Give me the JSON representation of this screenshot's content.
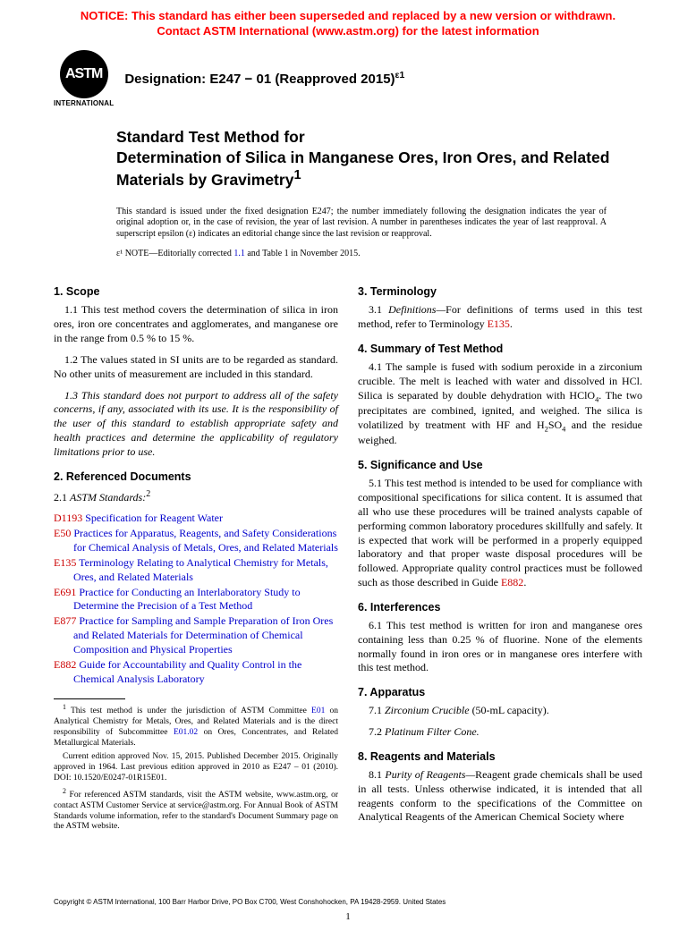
{
  "notice": {
    "line1": "NOTICE: This standard has either been superseded and replaced by a new version or withdrawn.",
    "line2": "Contact ASTM International (www.astm.org) for the latest information"
  },
  "logo": {
    "abbrev": "ASTM",
    "subtext": "INTERNATIONAL"
  },
  "designation": {
    "label": "Designation: E247 − 01 (Reapproved 2015)",
    "epsilon": "ε1"
  },
  "title": {
    "line1": "Standard Test Method for",
    "line2": "Determination of Silica in Manganese Ores, Iron Ores, and Related Materials by Gravimetry",
    "sup": "1"
  },
  "issuance": "This standard is issued under the fixed designation E247; the number immediately following the designation indicates the year of original adoption or, in the case of revision, the year of last revision. A number in parentheses indicates the year of last reapproval. A superscript epsilon (ε) indicates an editorial change since the last revision or reapproval.",
  "epsilon_note": {
    "prefix": "ε¹ NOTE—Editorially corrected ",
    "link": "1.1",
    "suffix": " and Table 1 in November 2015."
  },
  "sections": {
    "s1": {
      "head": "1. Scope"
    },
    "s1_1": "1.1 This test method covers the determination of silica in iron ores, iron ore concentrates and agglomerates, and manganese ore in the range from 0.5 % to 15 %.",
    "s1_2": "1.2 The values stated in SI units are to be regarded as standard. No other units of measurement are included in this standard.",
    "s1_3": "1.3 This standard does not purport to address all of the safety concerns, if any, associated with its use. It is the responsibility of the user of this standard to establish appropriate safety and health practices and determine the applicability of regulatory limitations prior to use.",
    "s2": {
      "head": "2. Referenced Documents"
    },
    "s2_1": {
      "num": "2.1 ",
      "label": "ASTM Standards:",
      "sup": "2"
    },
    "refs": [
      {
        "code": "D1193",
        "title": "Specification for Reagent Water"
      },
      {
        "code": "E50",
        "title": "Practices for Apparatus, Reagents, and Safety Considerations for Chemical Analysis of Metals, Ores, and Related Materials"
      },
      {
        "code": "E135",
        "title": "Terminology Relating to Analytical Chemistry for Metals, Ores, and Related Materials"
      },
      {
        "code": "E691",
        "title": "Practice for Conducting an Interlaboratory Study to Determine the Precision of a Test Method"
      },
      {
        "code": "E877",
        "title": "Practice for Sampling and Sample Preparation of Iron Ores and Related Materials for Determination of Chemical Composition and Physical Properties"
      },
      {
        "code": "E882",
        "title": "Guide for Accountability and Quality Control in the Chemical Analysis Laboratory"
      }
    ],
    "s3": {
      "head": "3. Terminology"
    },
    "s3_1": {
      "pre": "3.1 ",
      "def": "Definitions—",
      "text": "For definitions of terms used in this test method, refer to Terminology ",
      "link": "E135",
      "post": "."
    },
    "s4": {
      "head": "4. Summary of Test Method"
    },
    "s4_1": {
      "pre": "4.1 The sample is fused with sodium peroxide in a zirconium crucible. The melt is leached with water and dissolved in HCl. Silica is separated by double dehydration with HClO",
      "sub1": "4",
      "mid": ". The two precipitates are combined, ignited, and weighed. The silica is volatilized by treatment with HF and H",
      "sub2": "2",
      "so": "SO",
      "sub3": "4",
      "post": " and the residue weighed."
    },
    "s5": {
      "head": "5. Significance and Use"
    },
    "s5_1": {
      "text": "5.1 This test method is intended to be used for compliance with compositional specifications for silica content. It is assumed that all who use these procedures will be trained analysts capable of performing common laboratory procedures skillfully and safely. It is expected that work will be performed in a properly equipped laboratory and that proper waste disposal procedures will be followed. Appropriate quality control practices must be followed such as those described in Guide ",
      "link": "E882",
      "post": "."
    },
    "s6": {
      "head": "6. Interferences"
    },
    "s6_1": "6.1 This test method is written for iron and manganese ores containing less than 0.25 % of fluorine. None of the elements normally found in iron ores or in manganese ores interfere with this test method.",
    "s7": {
      "head": "7. Apparatus"
    },
    "s7_1": {
      "num": "7.1 ",
      "item": "Zirconium Crucible",
      "detail": " (50-mL capacity)."
    },
    "s7_2": {
      "num": "7.2 ",
      "item": "Platinum Filter Cone."
    },
    "s8": {
      "head": "8. Reagents and Materials"
    },
    "s8_1": {
      "num": "8.1 ",
      "lead": "Purity of Reagents—",
      "text": "Reagent grade chemicals shall be used in all tests. Unless otherwise indicated, it is intended that all reagents conform to the specifications of the Committee on Analytical Reagents of the American Chemical Society where"
    }
  },
  "footnotes": {
    "f1": {
      "sup": "1",
      "pre": " This test method is under the jurisdiction of ASTM Committee ",
      "l1": "E01",
      "mid": " on Analytical Chemistry for Metals, Ores, and Related Materials and is the direct responsibility of Subcommittee ",
      "l2": "E01.02",
      "post": " on Ores, Concentrates, and Related Metallurgical Materials."
    },
    "f1b": "Current edition approved Nov. 15, 2015. Published December 2015. Originally approved in 1964. Last previous edition approved in 2010 as E247 – 01 (2010). DOI: 10.1520/E0247-01R15E01.",
    "f2": {
      "sup": "2",
      "text": " For referenced ASTM standards, visit the ASTM website, www.astm.org, or contact ASTM Customer Service at service@astm.org. For Annual Book of ASTM Standards volume information, refer to the standard's Document Summary page on the ASTM website."
    }
  },
  "copyright": "Copyright © ASTM International, 100 Barr Harbor Drive, PO Box C700, West Conshohocken, PA 19428-2959. United States",
  "pagenum": "1"
}
